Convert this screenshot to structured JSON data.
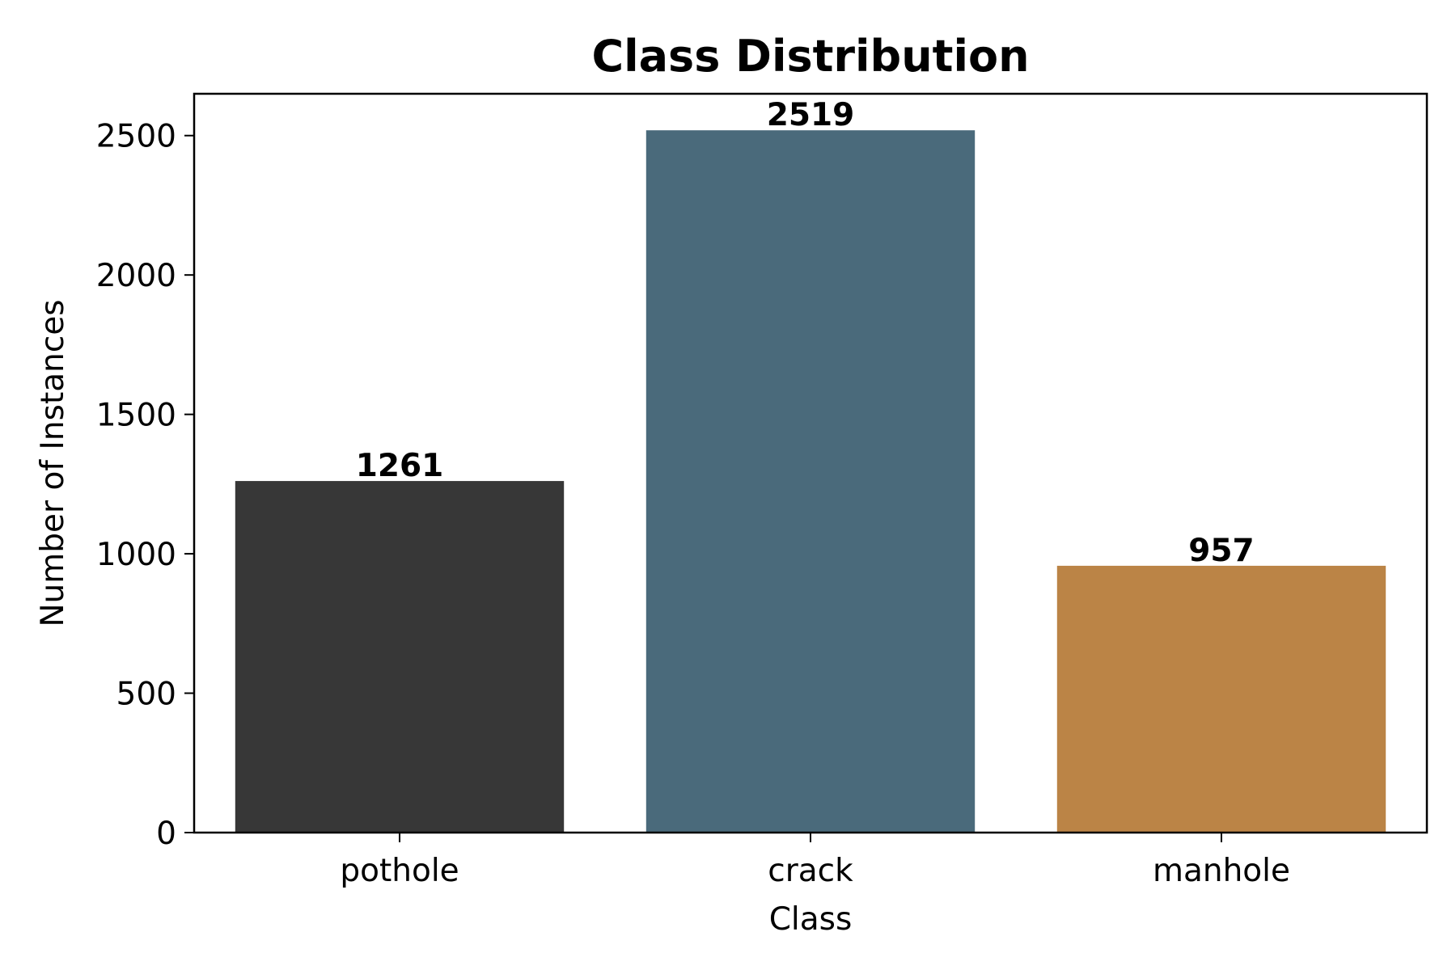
{
  "chart_data": {
    "type": "bar",
    "title": "Class Distribution",
    "xlabel": "Class",
    "ylabel": "Number of Instances",
    "categories": [
      "pothole",
      "crack",
      "manhole"
    ],
    "values": [
      1261,
      2519,
      957
    ],
    "data_labels": [
      "1261",
      "2519",
      "957"
    ],
    "bar_colors": [
      "#373737",
      "#4a6a7b",
      "#bb8446"
    ],
    "ylim": [
      0,
      2650
    ],
    "yticks": [
      0,
      500,
      1000,
      1500,
      2000,
      2500
    ],
    "ytick_labels": [
      "0",
      "500",
      "1000",
      "1500",
      "2000",
      "2500"
    ],
    "grid": false,
    "legend": "none"
  }
}
